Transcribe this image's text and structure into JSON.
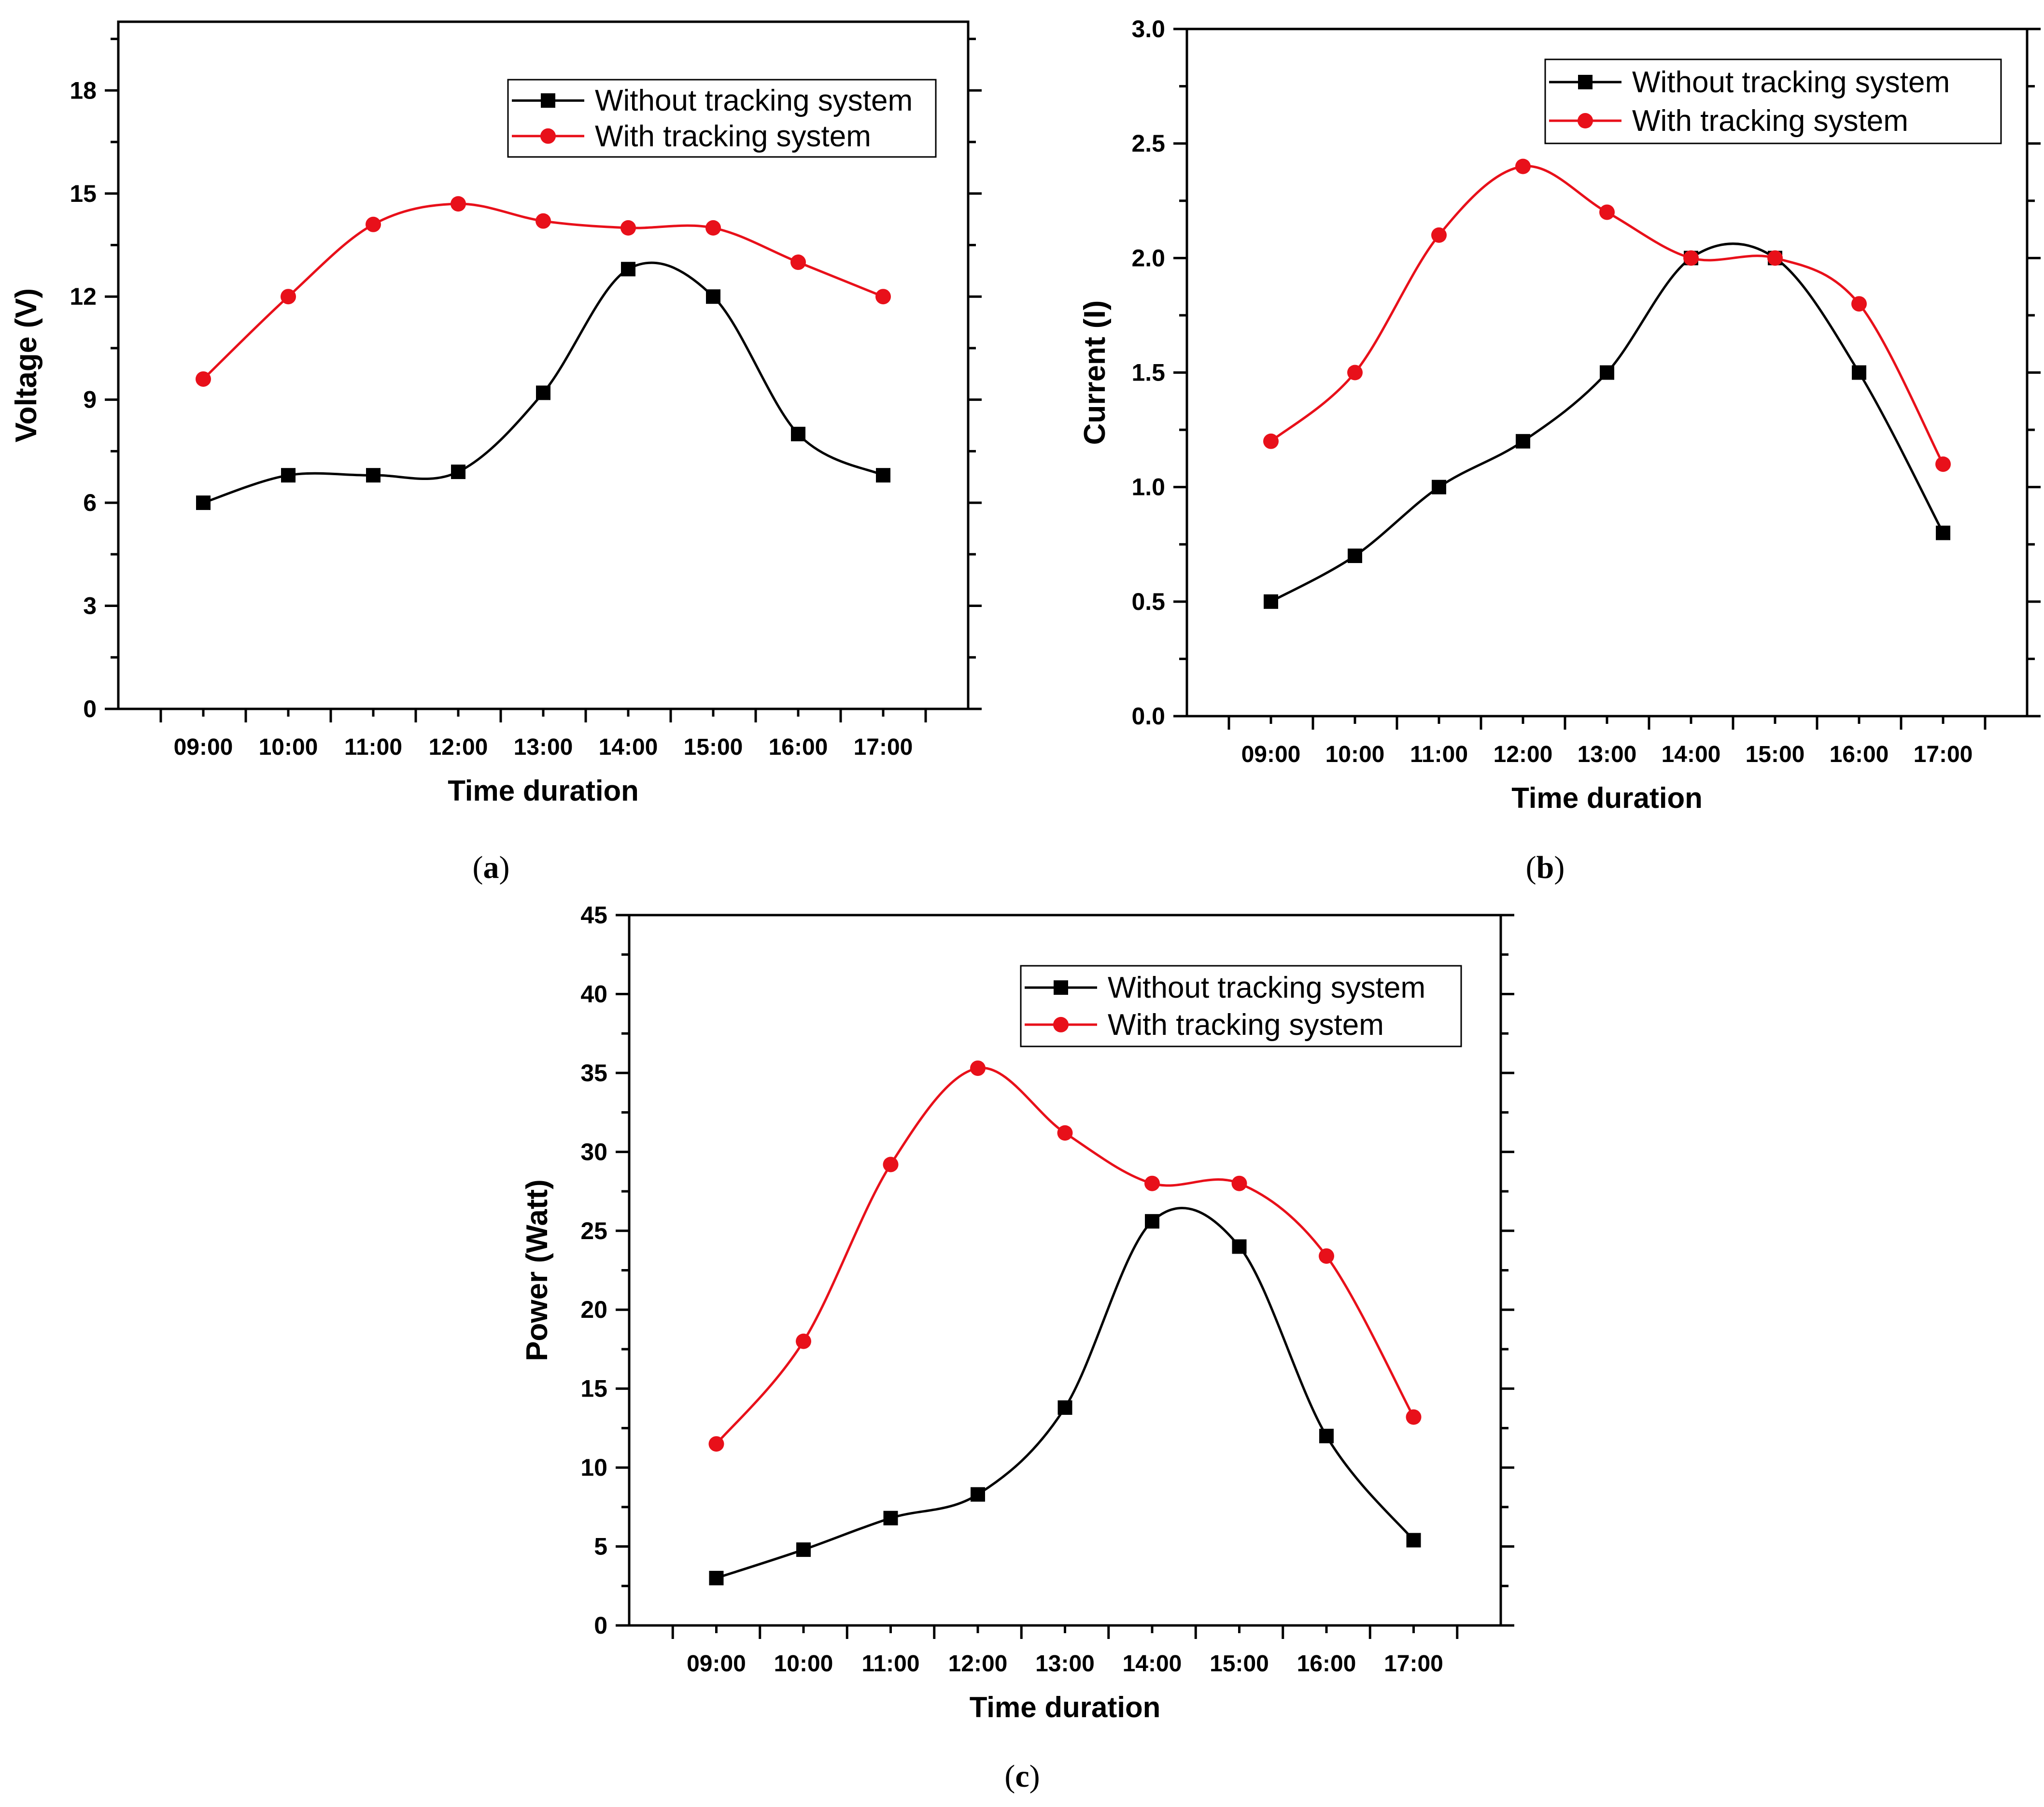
{
  "chart_data": [
    {
      "type": "line",
      "panel_label": "a",
      "xlabel": "Time duration",
      "ylabel": "Voltage (V)",
      "categories": [
        "09:00",
        "10:00",
        "11:00",
        "12:00",
        "13:00",
        "14:00",
        "15:00",
        "16:00",
        "17:00"
      ],
      "ylim": [
        0,
        20
      ],
      "yticks": [
        0,
        3,
        6,
        9,
        12,
        15,
        18
      ],
      "legend_position": "top-right",
      "series": [
        {
          "name": "Without tracking system",
          "color": "#000000",
          "marker": "square",
          "values": [
            6.0,
            6.8,
            6.8,
            6.9,
            9.2,
            12.8,
            12.0,
            8.0,
            6.8
          ]
        },
        {
          "name": "With tracking system",
          "color": "#e8101a",
          "marker": "circle",
          "values": [
            9.6,
            12.0,
            14.1,
            14.7,
            14.2,
            14.0,
            14.0,
            13.0,
            12.0
          ]
        }
      ]
    },
    {
      "type": "line",
      "panel_label": "b",
      "xlabel": "Time duration",
      "ylabel": "Current (I)",
      "categories": [
        "09:00",
        "10:00",
        "11:00",
        "12:00",
        "13:00",
        "14:00",
        "15:00",
        "16:00",
        "17:00"
      ],
      "ylim": [
        0,
        3.0
      ],
      "yticks": [
        "0.0",
        "0.5",
        "1.0",
        "1.5",
        "2.0",
        "2.5",
        "3.0"
      ],
      "legend_position": "top-right",
      "series": [
        {
          "name": "Without tracking system",
          "color": "#000000",
          "marker": "square",
          "values": [
            0.5,
            0.7,
            1.0,
            1.2,
            1.5,
            2.0,
            2.0,
            1.5,
            0.8
          ]
        },
        {
          "name": "With tracking system",
          "color": "#e8101a",
          "marker": "circle",
          "values": [
            1.2,
            1.5,
            2.1,
            2.4,
            2.2,
            2.0,
            2.0,
            1.8,
            1.1
          ]
        }
      ]
    },
    {
      "type": "line",
      "panel_label": "c",
      "xlabel": "Time duration",
      "ylabel": "Power (Watt)",
      "categories": [
        "09:00",
        "10:00",
        "11:00",
        "12:00",
        "13:00",
        "14:00",
        "15:00",
        "16:00",
        "17:00"
      ],
      "ylim": [
        0,
        45
      ],
      "yticks": [
        0,
        5,
        10,
        15,
        20,
        25,
        30,
        35,
        40,
        45
      ],
      "legend_position": "top-right",
      "series": [
        {
          "name": "Without tracking system",
          "color": "#000000",
          "marker": "square",
          "values": [
            3.0,
            4.8,
            6.8,
            8.3,
            13.8,
            25.6,
            24.0,
            12.0,
            5.4
          ]
        },
        {
          "name": "With tracking system",
          "color": "#e8101a",
          "marker": "circle",
          "values": [
            11.5,
            18.0,
            29.2,
            35.3,
            31.2,
            28.0,
            28.0,
            23.4,
            13.2
          ]
        }
      ]
    }
  ]
}
